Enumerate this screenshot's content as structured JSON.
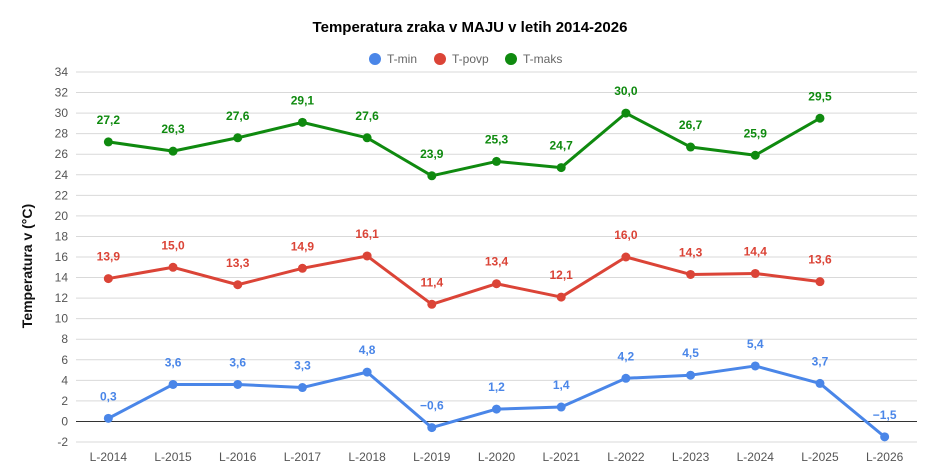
{
  "chart_data": {
    "type": "line",
    "title": "Temperatura zraka v MAJU v letih 2014-2026",
    "ylabel": "Temperatura v  (°C)",
    "xlabel": "",
    "ylim": [
      -2,
      34
    ],
    "yticks": [
      -2,
      0,
      2,
      4,
      6,
      8,
      10,
      12,
      14,
      16,
      18,
      20,
      22,
      24,
      26,
      28,
      30,
      32,
      34
    ],
    "grid": true,
    "legend_position": "top",
    "categories": [
      "L-2014",
      "L-2015",
      "L-2016",
      "L-2017",
      "L-2018",
      "L-2019",
      "L-2020",
      "L-2021",
      "L-2022",
      "L-2023",
      "L-2024",
      "L-2025",
      "L-2026"
    ],
    "series": [
      {
        "name": "T-min",
        "color": "#4a86e8",
        "values": [
          0.3,
          3.6,
          3.6,
          3.3,
          4.8,
          -0.6,
          1.2,
          1.4,
          4.2,
          4.5,
          5.4,
          3.7,
          -1.5
        ],
        "labels": [
          "0,3",
          "3,6",
          "3,6",
          "3,3",
          "4,8",
          "−0,6",
          "1,2",
          "1,4",
          "4,2",
          "4,5",
          "5,4",
          "3,7",
          "−1,5"
        ]
      },
      {
        "name": "T-povp",
        "color": "#db4437",
        "values": [
          13.9,
          15.0,
          13.3,
          14.9,
          16.1,
          11.4,
          13.4,
          12.1,
          16.0,
          14.3,
          14.4,
          13.6,
          null
        ],
        "labels": [
          "13,9",
          "15,0",
          "13,3",
          "14,9",
          "16,1",
          "11,4",
          "13,4",
          "12,1",
          "16,0",
          "14,3",
          "14,4",
          "13,6",
          ""
        ]
      },
      {
        "name": "T-maks",
        "color": "#0f8a0f",
        "values": [
          27.2,
          26.3,
          27.6,
          29.1,
          27.6,
          23.9,
          25.3,
          24.7,
          30.0,
          26.7,
          25.9,
          29.5,
          null
        ],
        "labels": [
          "27,2",
          "26,3",
          "27,6",
          "29,1",
          "27,6",
          "23,9",
          "25,3",
          "24,7",
          "30,0",
          "26,7",
          "25,9",
          "29,5",
          ""
        ]
      }
    ]
  }
}
